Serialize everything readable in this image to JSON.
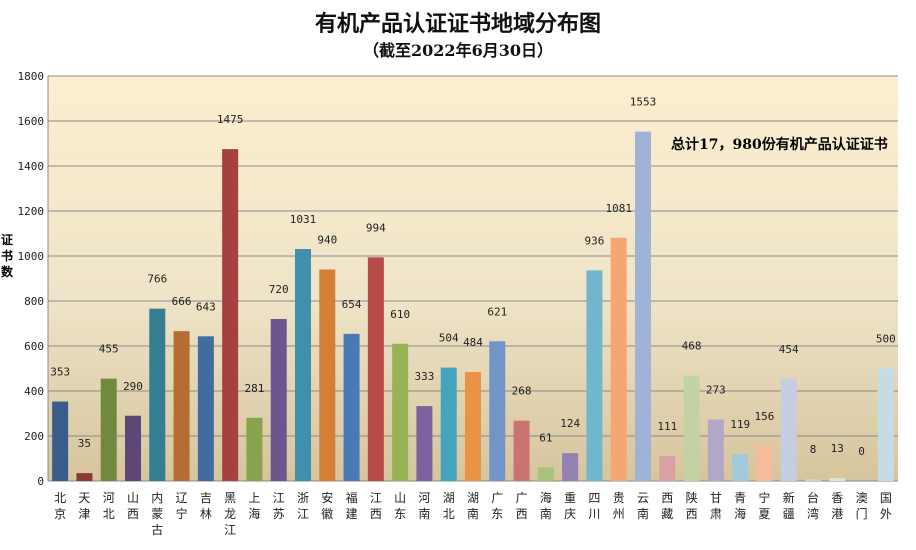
{
  "chart_data": {
    "type": "bar",
    "title": "有机产品认证证书地域分布图",
    "subtitle": "（截至2022年6月30日）",
    "ylabel": "证书数",
    "xlabel": "",
    "ylim": [
      0,
      1800
    ],
    "yticks": [
      0,
      200,
      400,
      600,
      800,
      1000,
      1200,
      1400,
      1600,
      1800
    ],
    "grid": true,
    "annotation": "总计17，980份有机产品认证证书",
    "categories": [
      "北京",
      "天津",
      "河北",
      "山西",
      "内蒙古",
      "辽宁",
      "吉林",
      "黑龙江",
      "上海",
      "江苏",
      "浙江",
      "安徽",
      "福建",
      "江西",
      "山东",
      "河南",
      "湖北",
      "湖南",
      "广东",
      "广西",
      "海南",
      "重庆",
      "四川",
      "贵州",
      "云南",
      "西藏",
      "陕西",
      "甘肃",
      "青海",
      "宁夏",
      "新疆",
      "台湾",
      "香港",
      "澳门",
      "国外"
    ],
    "values": [
      353,
      35,
      455,
      290,
      766,
      666,
      643,
      1475,
      281,
      720,
      1031,
      940,
      654,
      994,
      610,
      333,
      504,
      484,
      621,
      268,
      61,
      124,
      936,
      1081,
      1553,
      111,
      468,
      273,
      119,
      156,
      454,
      8,
      13,
      0,
      500
    ],
    "colors": [
      "#385d8a",
      "#8c3836",
      "#71893f",
      "#5c4776",
      "#357d91",
      "#b66d31",
      "#426ca0",
      "#a54140",
      "#87a34c",
      "#6d5590",
      "#3e90ab",
      "#d47e37",
      "#4a7ab6",
      "#b84a48",
      "#98b356",
      "#7c63a0",
      "#44a3bd",
      "#ea9246",
      "#7394c6",
      "#c97373",
      "#a9c47a",
      "#9281b1",
      "#72b6ce",
      "#f6a672",
      "#a0b3d6",
      "#d8a2a2",
      "#c2d3a3",
      "#b2a7c6",
      "#a2cadc",
      "#f8bb9b",
      "#c4cde2",
      "#e4c8c8",
      "#dde6ce",
      "#d5d0e0",
      "#c3dce6"
    ],
    "background_gradient": [
      "#fdeed0",
      "#d6c49c"
    ]
  }
}
